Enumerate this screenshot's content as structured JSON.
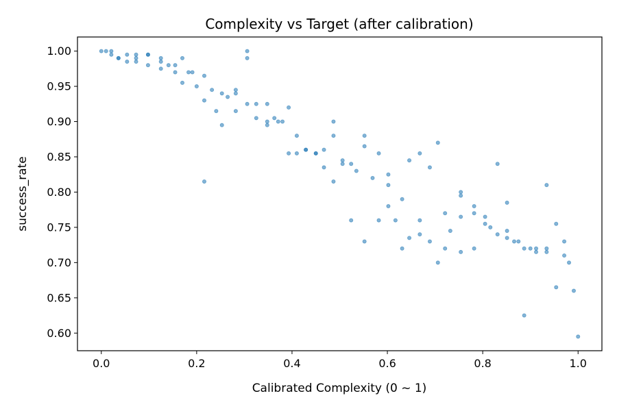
{
  "chart_data": {
    "type": "scatter",
    "title": "Complexity vs Target (after calibration)",
    "xlabel": "Calibrated Complexity (0 ~ 1)",
    "ylabel": "success_rate",
    "xlim": [
      -0.05,
      1.05
    ],
    "ylim": [
      0.575,
      1.02
    ],
    "xticks": [
      0.0,
      0.2,
      0.4,
      0.6,
      0.8,
      1.0
    ],
    "xtick_labels": [
      "0.0",
      "0.2",
      "0.4",
      "0.6",
      "0.8",
      "1.0"
    ],
    "yticks": [
      0.6,
      0.65,
      0.7,
      0.75,
      0.8,
      0.85,
      0.9,
      0.95,
      1.0
    ],
    "ytick_labels": [
      "0.60",
      "0.65",
      "0.70",
      "0.75",
      "0.80",
      "0.85",
      "0.90",
      "0.95",
      "1.00"
    ],
    "grid": false,
    "marker_color": "#1f77b4",
    "marker_alpha": 0.55,
    "points": [
      [
        0.0,
        1.0
      ],
      [
        0.01,
        1.0
      ],
      [
        0.021,
        1.0
      ],
      [
        0.021,
        0.995
      ],
      [
        0.036,
        0.99
      ],
      [
        0.036,
        0.99
      ],
      [
        0.054,
        0.995
      ],
      [
        0.054,
        0.985
      ],
      [
        0.073,
        0.995
      ],
      [
        0.073,
        0.99
      ],
      [
        0.073,
        0.985
      ],
      [
        0.098,
        0.995
      ],
      [
        0.098,
        0.995
      ],
      [
        0.098,
        0.98
      ],
      [
        0.125,
        0.99
      ],
      [
        0.125,
        0.985
      ],
      [
        0.125,
        0.975
      ],
      [
        0.141,
        0.98
      ],
      [
        0.155,
        0.98
      ],
      [
        0.155,
        0.97
      ],
      [
        0.17,
        0.99
      ],
      [
        0.17,
        0.955
      ],
      [
        0.183,
        0.97
      ],
      [
        0.191,
        0.97
      ],
      [
        0.2,
        0.95
      ],
      [
        0.216,
        0.965
      ],
      [
        0.216,
        0.93
      ],
      [
        0.216,
        0.815
      ],
      [
        0.232,
        0.945
      ],
      [
        0.241,
        0.915
      ],
      [
        0.253,
        0.94
      ],
      [
        0.253,
        0.895
      ],
      [
        0.265,
        0.935
      ],
      [
        0.282,
        0.945
      ],
      [
        0.282,
        0.94
      ],
      [
        0.282,
        0.915
      ],
      [
        0.306,
        1.0
      ],
      [
        0.306,
        0.99
      ],
      [
        0.306,
        0.925
      ],
      [
        0.325,
        0.925
      ],
      [
        0.325,
        0.905
      ],
      [
        0.348,
        0.925
      ],
      [
        0.348,
        0.9
      ],
      [
        0.348,
        0.895
      ],
      [
        0.363,
        0.905
      ],
      [
        0.371,
        0.9
      ],
      [
        0.38,
        0.9
      ],
      [
        0.393,
        0.92
      ],
      [
        0.393,
        0.855
      ],
      [
        0.41,
        0.88
      ],
      [
        0.41,
        0.855
      ],
      [
        0.429,
        0.86
      ],
      [
        0.429,
        0.86
      ],
      [
        0.45,
        0.855
      ],
      [
        0.45,
        0.855
      ],
      [
        0.467,
        0.86
      ],
      [
        0.467,
        0.835
      ],
      [
        0.487,
        0.9
      ],
      [
        0.487,
        0.88
      ],
      [
        0.487,
        0.815
      ],
      [
        0.506,
        0.845
      ],
      [
        0.506,
        0.84
      ],
      [
        0.524,
        0.84
      ],
      [
        0.524,
        0.76
      ],
      [
        0.535,
        0.83
      ],
      [
        0.552,
        0.88
      ],
      [
        0.552,
        0.865
      ],
      [
        0.552,
        0.73
      ],
      [
        0.569,
        0.82
      ],
      [
        0.582,
        0.855
      ],
      [
        0.582,
        0.76
      ],
      [
        0.602,
        0.825
      ],
      [
        0.602,
        0.81
      ],
      [
        0.602,
        0.78
      ],
      [
        0.617,
        0.76
      ],
      [
        0.631,
        0.79
      ],
      [
        0.631,
        0.72
      ],
      [
        0.646,
        0.845
      ],
      [
        0.646,
        0.735
      ],
      [
        0.668,
        0.855
      ],
      [
        0.668,
        0.76
      ],
      [
        0.668,
        0.74
      ],
      [
        0.689,
        0.835
      ],
      [
        0.689,
        0.73
      ],
      [
        0.706,
        0.87
      ],
      [
        0.706,
        0.7
      ],
      [
        0.721,
        0.77
      ],
      [
        0.721,
        0.72
      ],
      [
        0.732,
        0.745
      ],
      [
        0.754,
        0.8
      ],
      [
        0.754,
        0.795
      ],
      [
        0.754,
        0.765
      ],
      [
        0.754,
        0.715
      ],
      [
        0.782,
        0.78
      ],
      [
        0.782,
        0.77
      ],
      [
        0.782,
        0.72
      ],
      [
        0.805,
        0.765
      ],
      [
        0.805,
        0.755
      ],
      [
        0.816,
        0.75
      ],
      [
        0.831,
        0.84
      ],
      [
        0.831,
        0.74
      ],
      [
        0.851,
        0.785
      ],
      [
        0.851,
        0.745
      ],
      [
        0.851,
        0.735
      ],
      [
        0.866,
        0.73
      ],
      [
        0.875,
        0.73
      ],
      [
        0.887,
        0.72
      ],
      [
        0.887,
        0.625
      ],
      [
        0.9,
        0.72
      ],
      [
        0.912,
        0.72
      ],
      [
        0.912,
        0.715
      ],
      [
        0.934,
        0.81
      ],
      [
        0.934,
        0.72
      ],
      [
        0.934,
        0.715
      ],
      [
        0.954,
        0.755
      ],
      [
        0.954,
        0.665
      ],
      [
        0.971,
        0.73
      ],
      [
        0.971,
        0.71
      ],
      [
        0.981,
        0.7
      ],
      [
        0.991,
        0.66
      ],
      [
        1.0,
        0.595
      ]
    ]
  }
}
